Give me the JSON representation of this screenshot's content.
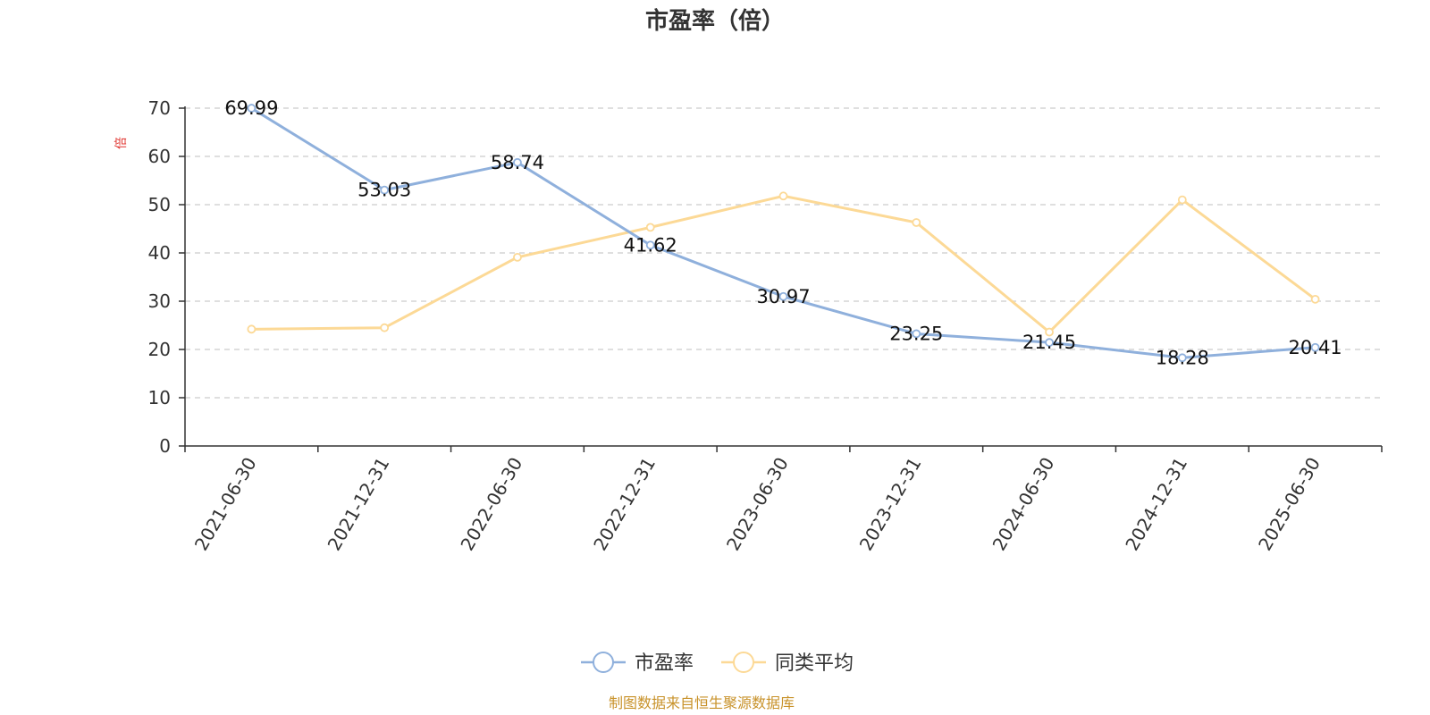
{
  "chart_data": {
    "type": "line",
    "title": "市盈率（倍）",
    "ylabel": "倍",
    "ylim": [
      0,
      70
    ],
    "yticks": [
      0,
      10,
      20,
      30,
      40,
      50,
      60,
      70
    ],
    "grid": true,
    "legend_position": "bottom",
    "categories": [
      "2021-06-30",
      "2021-12-31",
      "2022-06-30",
      "2022-12-31",
      "2023-06-30",
      "2023-12-31",
      "2024-06-30",
      "2024-12-31",
      "2025-06-30"
    ],
    "series": [
      {
        "name": "市盈率",
        "color": "#8fb0dc",
        "values": [
          69.99,
          53.03,
          58.74,
          41.62,
          30.97,
          23.25,
          21.45,
          18.28,
          20.41
        ],
        "labels": [
          "69.99",
          "53.03",
          "58.74",
          "41.62",
          "30.97",
          "23.25",
          "21.45",
          "18.28",
          "20.41"
        ]
      },
      {
        "name": "同类平均",
        "color": "#fcd996",
        "values": [
          24.2,
          24.5,
          39.1,
          45.3,
          51.8,
          46.3,
          23.6,
          51.0,
          30.4
        ]
      }
    ],
    "source": "制图数据来自恒生聚源数据库"
  }
}
